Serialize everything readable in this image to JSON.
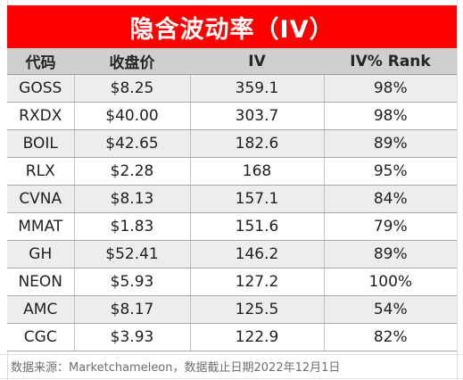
{
  "title": "隐含波动率（IV）",
  "headers": [
    "代码",
    "收盘价",
    "IV",
    "IV% Rank"
  ],
  "rows": [
    {
      "ticker": "GOSS",
      "close": "$8.25",
      "iv": "359.1",
      "rank": "98%"
    },
    {
      "ticker": "RXDX",
      "close": "$40.00",
      "iv": "303.7",
      "rank": "98%"
    },
    {
      "ticker": "BOIL",
      "close": "$42.65",
      "iv": "182.6",
      "rank": "89%"
    },
    {
      "ticker": "RLX",
      "close": "$2.28",
      "iv": "168",
      "rank": "95%"
    },
    {
      "ticker": "CVNA",
      "close": "$8.13",
      "iv": "157.1",
      "rank": "84%"
    },
    {
      "ticker": "MMAT",
      "close": "$1.83",
      "iv": "151.6",
      "rank": "79%"
    },
    {
      "ticker": "GH",
      "close": "$52.41",
      "iv": "146.2",
      "rank": "89%"
    },
    {
      "ticker": "NEON",
      "close": "$5.93",
      "iv": "127.2",
      "rank": "100%"
    },
    {
      "ticker": "AMC",
      "close": "$8.17",
      "iv": "125.5",
      "rank": "54%"
    },
    {
      "ticker": "CGC",
      "close": "$3.93",
      "iv": "122.9",
      "rank": "82%"
    }
  ],
  "source_note": "数据来源：Marketchameleon，数据截止日期2022年12月1日",
  "colors": {
    "title_bg": "#ff0000",
    "title_text": "#ffffff",
    "header_bg": "#d0cece",
    "band_bg": "#ededed"
  }
}
